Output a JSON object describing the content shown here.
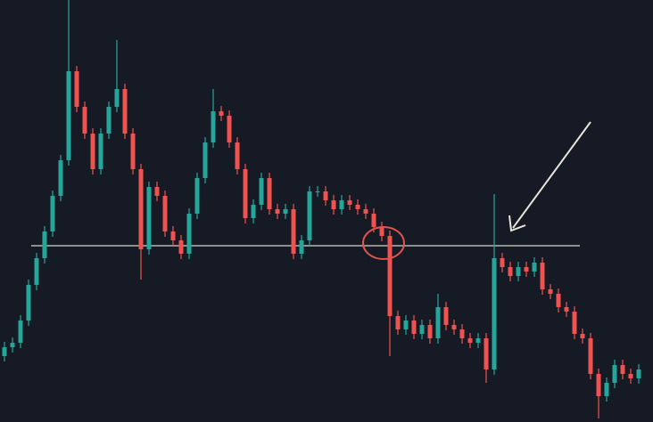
{
  "chart_data": {
    "type": "candlestick",
    "up_color": "#26a69a",
    "down_color": "#ef5350",
    "ylim": [
      0,
      474
    ],
    "support_level": 198,
    "support_color": "#d6d6cc",
    "open": [
      74,
      84,
      89,
      114,
      154,
      184,
      214,
      254,
      294,
      394,
      354,
      324,
      284,
      324,
      354,
      374,
      324,
      284,
      194,
      264,
      254,
      214,
      204,
      189,
      234,
      274,
      314,
      349,
      344,
      314,
      284,
      229,
      244,
      274,
      239,
      234,
      239,
      189,
      204,
      259,
      259,
      249,
      239,
      249,
      244,
      239,
      234,
      219,
      209,
      119,
      104,
      114,
      99,
      109,
      94,
      129,
      109,
      104,
      94,
      89,
      94,
      59,
      184,
      174,
      164,
      174,
      169,
      179,
      149,
      144,
      129,
      124,
      99,
      94,
      54,
      29,
      44,
      64,
      54,
      49
    ],
    "high": [
      90,
      95,
      120,
      160,
      190,
      220,
      260,
      300,
      474,
      400,
      360,
      330,
      330,
      360,
      429,
      380,
      330,
      290,
      270,
      270,
      260,
      220,
      210,
      240,
      280,
      320,
      374,
      355,
      350,
      320,
      290,
      250,
      280,
      280,
      245,
      245,
      245,
      210,
      265,
      265,
      265,
      255,
      255,
      255,
      250,
      245,
      240,
      225,
      215,
      125,
      120,
      120,
      115,
      115,
      144,
      135,
      115,
      110,
      100,
      100,
      100,
      256,
      190,
      180,
      180,
      180,
      185,
      185,
      155,
      150,
      135,
      130,
      105,
      100,
      60,
      50,
      70,
      70,
      60,
      65
    ],
    "low": [
      68,
      78,
      83,
      108,
      148,
      178,
      208,
      248,
      288,
      348,
      318,
      278,
      278,
      318,
      348,
      318,
      278,
      160,
      188,
      248,
      208,
      198,
      183,
      183,
      228,
      268,
      308,
      338,
      308,
      278,
      223,
      223,
      238,
      233,
      228,
      228,
      183,
      183,
      198,
      253,
      243,
      233,
      233,
      238,
      233,
      228,
      213,
      203,
      74,
      98,
      98,
      93,
      93,
      88,
      88,
      103,
      98,
      88,
      83,
      83,
      44,
      53,
      168,
      158,
      158,
      163,
      163,
      143,
      138,
      123,
      118,
      93,
      88,
      48,
      4,
      23,
      38,
      48,
      43,
      43
    ],
    "close": [
      84,
      89,
      114,
      154,
      184,
      214,
      254,
      294,
      394,
      354,
      324,
      284,
      324,
      354,
      374,
      324,
      284,
      194,
      264,
      254,
      214,
      204,
      189,
      234,
      274,
      314,
      349,
      344,
      314,
      284,
      229,
      244,
      274,
      239,
      234,
      239,
      189,
      204,
      259,
      259,
      249,
      239,
      249,
      244,
      239,
      234,
      219,
      209,
      119,
      104,
      114,
      99,
      109,
      94,
      129,
      109,
      104,
      94,
      89,
      94,
      59,
      184,
      174,
      164,
      174,
      169,
      179,
      149,
      144,
      129,
      124,
      99,
      94,
      54,
      29,
      44,
      64,
      54,
      49,
      59
    ]
  }
}
